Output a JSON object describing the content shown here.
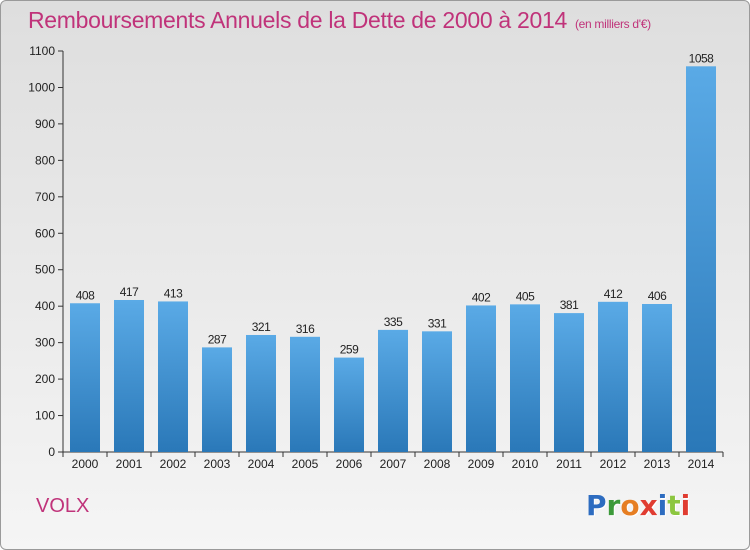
{
  "title": "Remboursements Annuels de la Dette de 2000 à 2014",
  "unit": "(en milliers d'€)",
  "place": "VOLX",
  "logo": {
    "letters": [
      "P",
      "r",
      "o",
      "x",
      "i",
      "t",
      "i"
    ],
    "colors": [
      "#2d6cc0",
      "#3c9a3a",
      "#e67e22",
      "#e03c31",
      "#2d6cc0",
      "#8cc63f",
      "#e03c31"
    ]
  },
  "chart_data": {
    "type": "bar",
    "categories": [
      "2000",
      "2001",
      "2002",
      "2003",
      "2004",
      "2005",
      "2006",
      "2007",
      "2008",
      "2009",
      "2010",
      "2011",
      "2012",
      "2013",
      "2014"
    ],
    "values": [
      408,
      417,
      413,
      287,
      321,
      316,
      259,
      335,
      331,
      402,
      405,
      381,
      412,
      406,
      1058
    ],
    "ylim": [
      0,
      1100
    ],
    "yticks": [
      0,
      100,
      200,
      300,
      400,
      500,
      600,
      700,
      800,
      900,
      1000,
      1100
    ],
    "grid": false,
    "bar_color_top": "#5aaae6",
    "bar_color_bottom": "#2a78b8"
  }
}
